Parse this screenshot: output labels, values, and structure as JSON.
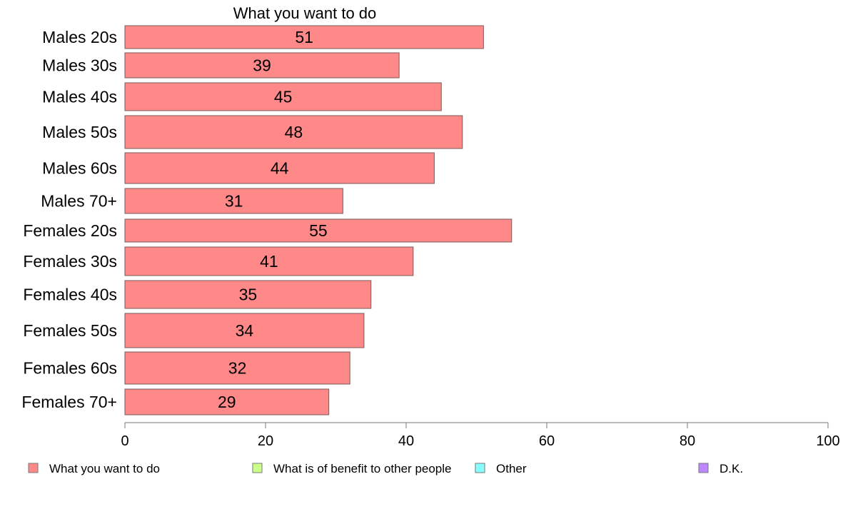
{
  "chart_data": {
    "type": "bar",
    "orientation": "horizontal",
    "title": "What you want to do",
    "categories": [
      "Males 20s",
      "Males 30s",
      "Males 40s",
      "Males 50s",
      "Males 60s",
      "Males 70+",
      "Females 20s",
      "Females 30s",
      "Females 40s",
      "Females 50s",
      "Females 60s",
      "Females 70+"
    ],
    "series": [
      {
        "name": "What you want to do",
        "color": "#ff8888",
        "values": [
          51,
          39,
          45,
          48,
          44,
          31,
          55,
          41,
          35,
          34,
          32,
          29
        ]
      }
    ],
    "xlim": [
      0,
      100
    ],
    "xticks": [
      0,
      20,
      40,
      60,
      80,
      100
    ],
    "xlabel": "",
    "ylabel": "",
    "grid": false,
    "legend": {
      "placement": "bottom",
      "entries": [
        {
          "label": "What you want to do",
          "color": "#ff8888"
        },
        {
          "label": "What is of benefit to other people",
          "color": "#ccff88"
        },
        {
          "label": "Other",
          "color": "#88ffff"
        },
        {
          "label": "D.K.",
          "color": "#bb88ff"
        }
      ]
    }
  }
}
